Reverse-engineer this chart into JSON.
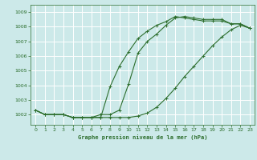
{
  "title": "Graphe pression niveau de la mer (hPa)",
  "bg_color": "#cce9e9",
  "grid_color": "#ffffff",
  "line_color": "#2d6e2d",
  "xlim": [
    -0.5,
    23.5
  ],
  "ylim": [
    1001.3,
    1009.5
  ],
  "yticks": [
    1002,
    1003,
    1004,
    1005,
    1006,
    1007,
    1008,
    1009
  ],
  "xticks": [
    0,
    1,
    2,
    3,
    4,
    5,
    6,
    7,
    8,
    9,
    10,
    11,
    12,
    13,
    14,
    15,
    16,
    17,
    18,
    19,
    20,
    21,
    22,
    23
  ],
  "series1": [
    1002.3,
    1002.0,
    1002.0,
    1002.0,
    1001.8,
    1001.8,
    1001.8,
    1001.8,
    1001.8,
    1001.8,
    1001.8,
    1001.9,
    1002.1,
    1002.5,
    1003.1,
    1003.8,
    1004.6,
    1005.3,
    1006.0,
    1006.7,
    1007.3,
    1007.8,
    1008.1,
    1007.9
  ],
  "series2": [
    1002.3,
    1002.0,
    1002.0,
    1002.0,
    1001.8,
    1001.8,
    1001.8,
    1001.8,
    1003.9,
    1005.3,
    1006.3,
    1007.2,
    1007.7,
    1008.1,
    1008.35,
    1008.7,
    1008.6,
    1008.5,
    1008.4,
    1008.4,
    1008.4,
    1008.2,
    1008.2,
    1007.9
  ],
  "series3": [
    1002.3,
    1002.0,
    1002.0,
    1002.0,
    1001.8,
    1001.8,
    1001.8,
    1002.0,
    1002.0,
    1002.3,
    1004.1,
    1006.2,
    1007.0,
    1007.5,
    1008.1,
    1008.6,
    1008.7,
    1008.6,
    1008.5,
    1008.5,
    1008.5,
    1008.2,
    1008.2,
    1007.9
  ]
}
